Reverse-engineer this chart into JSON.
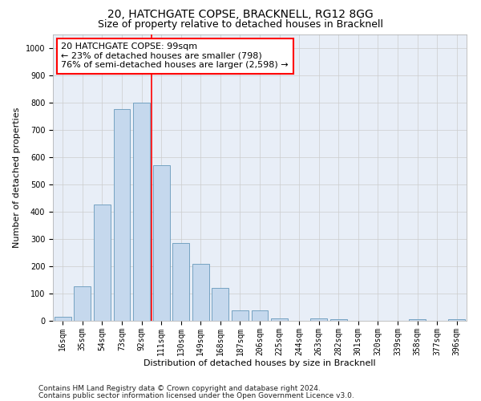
{
  "title1": "20, HATCHGATE COPSE, BRACKNELL, RG12 8GG",
  "title2": "Size of property relative to detached houses in Bracknell",
  "xlabel": "Distribution of detached houses by size in Bracknell",
  "ylabel": "Number of detached properties",
  "categories": [
    "16sqm",
    "35sqm",
    "54sqm",
    "73sqm",
    "92sqm",
    "111sqm",
    "130sqm",
    "149sqm",
    "168sqm",
    "187sqm",
    "206sqm",
    "225sqm",
    "244sqm",
    "263sqm",
    "282sqm",
    "301sqm",
    "320sqm",
    "339sqm",
    "358sqm",
    "377sqm",
    "396sqm"
  ],
  "values": [
    15,
    125,
    425,
    775,
    800,
    570,
    285,
    210,
    120,
    37,
    37,
    10,
    0,
    10,
    5,
    0,
    0,
    0,
    5,
    0,
    5
  ],
  "bar_color": "#c5d8ed",
  "bar_edge_color": "#6699bb",
  "annotation_text": "20 HATCHGATE COPSE: 99sqm\n← 23% of detached houses are smaller (798)\n76% of semi-detached houses are larger (2,598) →",
  "annotation_box_color": "white",
  "annotation_box_edge": "red",
  "ylim": [
    0,
    1050
  ],
  "yticks": [
    0,
    100,
    200,
    300,
    400,
    500,
    600,
    700,
    800,
    900,
    1000
  ],
  "footer1": "Contains HM Land Registry data © Crown copyright and database right 2024.",
  "footer2": "Contains public sector information licensed under the Open Government Licence v3.0.",
  "title1_fontsize": 10,
  "title2_fontsize": 9,
  "axis_label_fontsize": 8,
  "tick_fontsize": 7,
  "annotation_fontsize": 8,
  "footer_fontsize": 6.5
}
